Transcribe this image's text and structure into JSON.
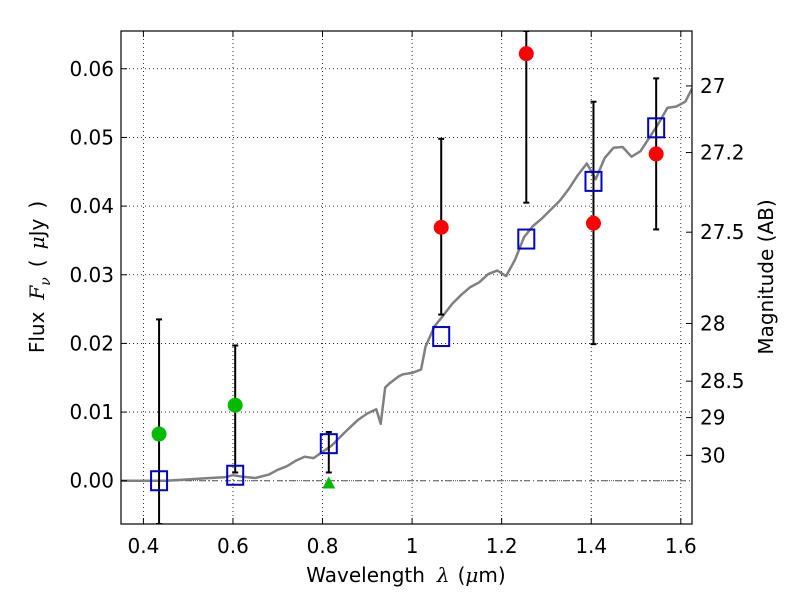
{
  "chart_data": {
    "type": "scatter",
    "xlabel_parts": [
      "Wavelength",
      "λ",
      "(",
      "μ",
      "m)"
    ],
    "ylabel_parts": [
      "Flux",
      "F",
      "ν",
      "(",
      "μ",
      "Jy",
      ")"
    ],
    "y2label": "Magnitude (AB)",
    "xlim": [
      0.35,
      1.625
    ],
    "ylim": [
      -0.0063,
      0.0655
    ],
    "grid": true,
    "x_ticks": [
      0.4,
      0.6,
      0.8,
      1.0,
      1.2,
      1.4,
      1.6
    ],
    "x_tick_labels": [
      "0.4",
      "0.6",
      "0.8",
      "1",
      "1.2",
      "1.4",
      "1.6"
    ],
    "y_ticks": [
      0.0,
      0.01,
      0.02,
      0.03,
      0.04,
      0.05,
      0.06
    ],
    "y_tick_labels": [
      "0.00",
      "0.01",
      "0.02",
      "0.03",
      "0.04",
      "0.05",
      "0.06"
    ],
    "mag_ticks": [
      {
        "label": "27",
        "flux": 0.0575
      },
      {
        "label": "27.2",
        "flux": 0.0478
      },
      {
        "label": "27.5",
        "flux": 0.0362
      },
      {
        "label": "28",
        "flux": 0.0229
      },
      {
        "label": "28.5",
        "flux": 0.0145
      },
      {
        "label": "29",
        "flux": 0.0092
      },
      {
        "label": "30",
        "flux": 0.0037
      }
    ],
    "zero_line": 0.0,
    "colors": {
      "model": "#808080",
      "measured": "#ff0000",
      "upper_limit": "#00bb00",
      "synthetic": "#0000cc",
      "errorbar": "#000000",
      "zero_line": "#555555"
    },
    "series": [
      {
        "kind": "model_sed",
        "x": [
          0.35,
          0.4,
          0.45,
          0.5,
          0.55,
          0.58,
          0.6,
          0.62,
          0.65,
          0.68,
          0.7,
          0.72,
          0.74,
          0.76,
          0.78,
          0.8,
          0.82,
          0.84,
          0.86,
          0.88,
          0.9,
          0.92,
          0.93,
          0.94,
          0.95,
          0.97,
          0.98,
          1.0,
          1.02,
          1.03,
          1.05,
          1.07,
          1.09,
          1.11,
          1.13,
          1.15,
          1.17,
          1.19,
          1.21,
          1.23,
          1.25,
          1.27,
          1.29,
          1.31,
          1.33,
          1.35,
          1.37,
          1.39,
          1.41,
          1.43,
          1.45,
          1.47,
          1.49,
          1.51,
          1.53,
          1.55,
          1.57,
          1.59,
          1.61,
          1.625
        ],
        "y": [
          0.0,
          0.0,
          0.0,
          0.0002,
          0.0004,
          0.0005,
          0.0008,
          0.0006,
          0.0004,
          0.0009,
          0.0016,
          0.0021,
          0.0029,
          0.0035,
          0.0033,
          0.0042,
          0.0051,
          0.0064,
          0.0077,
          0.0089,
          0.0098,
          0.0104,
          0.0083,
          0.0136,
          0.0142,
          0.0152,
          0.0155,
          0.0157,
          0.0162,
          0.0195,
          0.0225,
          0.0241,
          0.0258,
          0.0271,
          0.0282,
          0.0289,
          0.0301,
          0.0306,
          0.0298,
          0.0322,
          0.0355,
          0.0371,
          0.0382,
          0.0395,
          0.0408,
          0.0425,
          0.0445,
          0.0462,
          0.0439,
          0.047,
          0.0485,
          0.0486,
          0.0472,
          0.048,
          0.05,
          0.052,
          0.0543,
          0.0545,
          0.0552,
          0.0571
        ]
      },
      {
        "kind": "measured",
        "points": [
          {
            "x": 1.065,
            "y": 0.0369,
            "lo": 0.0242,
            "hi": 0.0498
          },
          {
            "x": 1.255,
            "y": 0.0622,
            "lo": 0.0405,
            "hi": 0.0655
          },
          {
            "x": 1.405,
            "y": 0.0375,
            "lo": 0.0199,
            "hi": 0.0552
          },
          {
            "x": 1.545,
            "y": 0.0476,
            "lo": 0.0366,
            "hi": 0.0586
          }
        ]
      },
      {
        "kind": "upper_limit",
        "points": [
          {
            "x": 0.435,
            "y": 0.0068,
            "lo": -0.0063,
            "hi": 0.0235
          },
          {
            "x": 0.605,
            "y": 0.011,
            "lo": 0.0012,
            "hi": 0.0197
          }
        ]
      },
      {
        "kind": "upper_limit_triangle",
        "points": [
          {
            "x": 0.814,
            "y": -0.0004,
            "lo": 0.0012,
            "hi": 0.0071
          }
        ]
      },
      {
        "kind": "synthetic",
        "points": [
          {
            "x": 0.435,
            "y": 0.0
          },
          {
            "x": 0.605,
            "y": 0.0008
          },
          {
            "x": 0.814,
            "y": 0.0054
          },
          {
            "x": 1.065,
            "y": 0.021
          },
          {
            "x": 1.255,
            "y": 0.0352
          },
          {
            "x": 1.405,
            "y": 0.0436
          },
          {
            "x": 1.545,
            "y": 0.0514
          }
        ]
      }
    ]
  }
}
